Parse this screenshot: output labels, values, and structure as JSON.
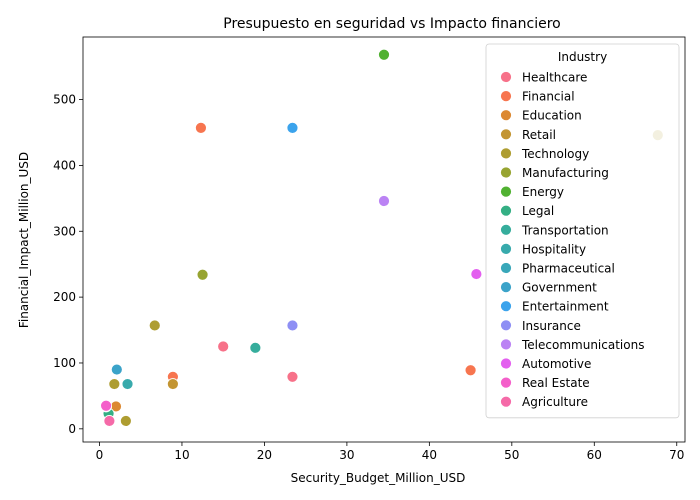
{
  "chart_data": {
    "type": "scatter",
    "title": "Presupuesto en seguridad vs Impacto financiero",
    "xlabel": "Security_Budget_Million_USD",
    "ylabel": "Financial_Impact_Million_USD",
    "xlim": [
      -2,
      71
    ],
    "ylim": [
      -20,
      595
    ],
    "xticks": [
      0,
      10,
      20,
      30,
      40,
      50,
      60,
      70
    ],
    "yticks": [
      0,
      100,
      200,
      300,
      400,
      500
    ],
    "grid": false,
    "legend": {
      "title": "Industry",
      "placement": "upper-right"
    },
    "series": [
      {
        "name": "Healthcare",
        "color": "#f77189",
        "points": [
          [
            15.0,
            125
          ],
          [
            23.4,
            79
          ]
        ]
      },
      {
        "name": "Financial",
        "color": "#f7754f",
        "points": [
          [
            12.3,
            457
          ],
          [
            8.9,
            79
          ],
          [
            45.0,
            89
          ]
        ]
      },
      {
        "name": "Education",
        "color": "#dc8932",
        "points": [
          [
            2.0,
            34
          ]
        ]
      },
      {
        "name": "Retail",
        "color": "#c39532",
        "points": [
          [
            8.9,
            68
          ]
        ]
      },
      {
        "name": "Technology",
        "color": "#ae9d31",
        "points": [
          [
            67.7,
            446
          ],
          [
            6.7,
            157
          ],
          [
            1.8,
            68
          ],
          [
            3.2,
            12
          ]
        ]
      },
      {
        "name": "Manufacturing",
        "color": "#97a431",
        "points": [
          [
            12.5,
            234
          ]
        ]
      },
      {
        "name": "Energy",
        "color": "#50b131",
        "points": [
          [
            34.5,
            568
          ]
        ]
      },
      {
        "name": "Legal",
        "color": "#34af84",
        "points": [
          [
            1.1,
            23
          ]
        ]
      },
      {
        "name": "Transportation",
        "color": "#36ad9c",
        "points": [
          [
            18.9,
            123
          ]
        ]
      },
      {
        "name": "Hospitality",
        "color": "#38aaac",
        "points": [
          [
            3.4,
            68
          ]
        ]
      },
      {
        "name": "Pharmaceutical",
        "color": "#39a7b9",
        "points": [
          [
            0.8,
            34
          ]
        ]
      },
      {
        "name": "Government",
        "color": "#3ba3c9",
        "points": [
          [
            2.1,
            90
          ]
        ]
      },
      {
        "name": "Entertainment",
        "color": "#3ba3ec",
        "points": [
          [
            23.4,
            457
          ]
        ]
      },
      {
        "name": "Insurance",
        "color": "#8e8ff4",
        "points": [
          [
            23.4,
            157
          ]
        ]
      },
      {
        "name": "Telecommunications",
        "color": "#bb83f4",
        "points": [
          [
            34.5,
            346
          ]
        ]
      },
      {
        "name": "Automotive",
        "color": "#e35fef",
        "points": [
          [
            45.7,
            235
          ]
        ]
      },
      {
        "name": "Real Estate",
        "color": "#f45fca",
        "points": [
          [
            0.8,
            35
          ]
        ]
      },
      {
        "name": "Agriculture",
        "color": "#f56aa8",
        "points": [
          [
            1.2,
            12
          ]
        ]
      }
    ]
  }
}
